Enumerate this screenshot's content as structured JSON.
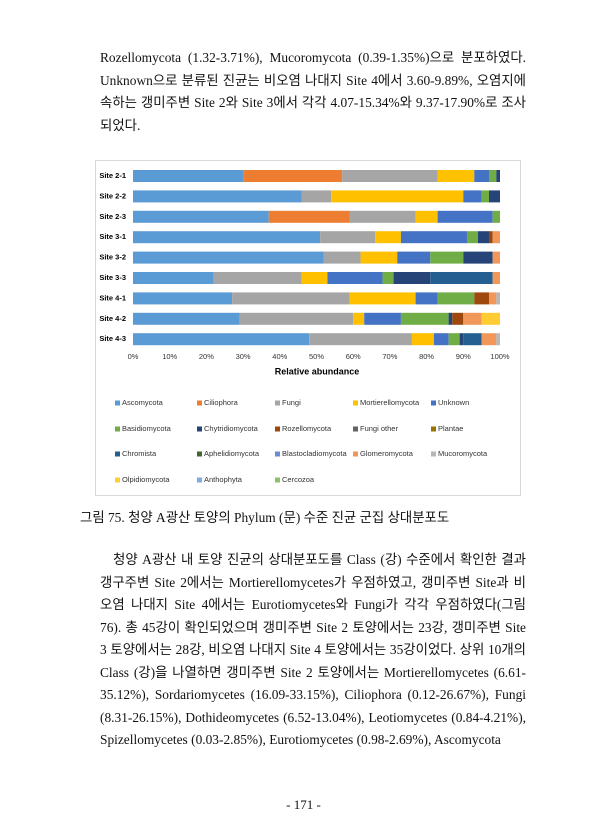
{
  "paragraphs": [
    "Rozellomycota (1.32-3.71%), Mucoromycota (0.39-1.35%)으로 분포하였다. Unknown으로 분류된 진균는 비오염 나대지 Site 4에서 3.60-9.89%, 오염지에 속하는 갱미주변 Site 2와 Site 3에서 각각 4.07-15.34%와 9.37-17.90%로 조사되었다.",
    "청양 A광산 내 토양 진균의 상대분포도를 Class (강) 수준에서 확인한 결과 갱구주변 Site 2에서는 Mortierellomycetes가 우점하였고, 갱미주변 Site과 비오염 나대지 Site 4에서는 Eurotiomycetes와 Fungi가 각각 우점하였다(그림 76). 총 45강이 확인되었으며 갱미주변 Site 2 토양에서는 23강, 갱미주변 Site 3 토양에서는 28강, 비오염 나대지 Site 4 토양에서는 35강이었다. 상위 10개의 Class (강)을 나열하면 갱미주변 Site 2 토양에서는 Mortierellomycetes (6.61-35.12%), Sordariomycetes (16.09-33.15%), Ciliophora (0.12-26.67%), Fungi (8.31-26.15%), Dothideomycetes (6.52-13.04%), Leotiomycetes (0.84-4.21%), Spizellomycetes (0.03-2.85%), Eurotiomycetes (0.98-2.69%), Ascomycota"
  ],
  "caption": "그림 75. 청양 A광산 토양의 Phylum (문) 수준 진균 군집 상대분포도",
  "page_number": "- 171 -",
  "chart_data": {
    "type": "stacked-barh",
    "xlabel": "Relative abundance",
    "categories": [
      "Site 2-1",
      "Site 2-2",
      "Site 2-3",
      "Site 3-1",
      "Site 3-2",
      "Site 3-3",
      "Site 4-1",
      "Site 4-2",
      "Site 4-3"
    ],
    "xlim": [
      0,
      100
    ],
    "xticks": [
      {
        "value": 0,
        "label": "0%"
      },
      {
        "value": 10,
        "label": "10%"
      },
      {
        "value": 20,
        "label": "20%"
      },
      {
        "value": 30,
        "label": "30%"
      },
      {
        "value": 40,
        "label": "40%"
      },
      {
        "value": 50,
        "label": "50%"
      },
      {
        "value": 60,
        "label": "60%"
      },
      {
        "value": 70,
        "label": "70%"
      },
      {
        "value": 80,
        "label": "80%"
      },
      {
        "value": 90,
        "label": "90%"
      },
      {
        "value": 100,
        "label": "100%"
      }
    ],
    "grid": false,
    "series": [
      {
        "name": "Ascomycota",
        "color": "#5b9bd5",
        "values": [
          30,
          46,
          37,
          51,
          52,
          22,
          27,
          29,
          48
        ]
      },
      {
        "name": "Ciliophora",
        "color": "#ed7d31",
        "values": [
          27,
          0,
          22,
          0,
          0,
          0,
          0,
          0,
          0
        ]
      },
      {
        "name": "Fungi",
        "color": "#a5a5a5",
        "values": [
          26,
          8,
          18,
          15,
          10,
          24,
          32,
          31,
          28
        ]
      },
      {
        "name": "Mortierellomycota",
        "color": "#ffc000",
        "values": [
          10,
          36,
          6,
          7,
          10,
          7,
          18,
          3,
          6
        ]
      },
      {
        "name": "Unknown",
        "color": "#4472c4",
        "values": [
          4,
          5,
          15,
          18,
          9,
          15,
          6,
          10,
          4
        ]
      },
      {
        "name": "Basidiomycota",
        "color": "#70ad47",
        "values": [
          2,
          2,
          2,
          3,
          9,
          3,
          10,
          13,
          3
        ]
      },
      {
        "name": "Chytridiomycota",
        "color": "#264478",
        "values": [
          1,
          3,
          0,
          3,
          8,
          10,
          0,
          1,
          1
        ]
      },
      {
        "name": "Rozellomycota",
        "color": "#9e480e",
        "values": [
          0,
          0,
          0,
          1,
          0,
          0,
          4,
          3,
          0
        ]
      },
      {
        "name": "Fungi other",
        "color": "#636363",
        "values": [
          0,
          0,
          0,
          0,
          0,
          0,
          0,
          0,
          0
        ]
      },
      {
        "name": "Plantae",
        "color": "#997300",
        "values": [
          0,
          0,
          0,
          0,
          0,
          0,
          0,
          0,
          0
        ]
      },
      {
        "name": "Chromista",
        "color": "#255e91",
        "values": [
          0,
          0,
          0,
          0,
          0,
          17,
          0,
          0,
          5
        ]
      },
      {
        "name": "Aphelidiomycota",
        "color": "#43682b",
        "values": [
          0,
          0,
          0,
          0,
          0,
          0,
          0,
          0,
          0
        ]
      },
      {
        "name": "Blastocladiomycota",
        "color": "#698ed0",
        "values": [
          0,
          0,
          0,
          0,
          0,
          0,
          0,
          0,
          0
        ]
      },
      {
        "name": "Glomeromycota",
        "color": "#f1975a",
        "values": [
          0,
          0,
          0,
          2,
          2,
          2,
          2,
          5,
          4
        ]
      },
      {
        "name": "Mucoromycota",
        "color": "#b7b7b7",
        "values": [
          0,
          0,
          0,
          0,
          0,
          0,
          1,
          0,
          1
        ]
      },
      {
        "name": "Olpidiomycota",
        "color": "#ffcd33",
        "values": [
          0,
          0,
          0,
          0,
          0,
          0,
          0,
          5,
          0
        ]
      },
      {
        "name": "Anthophyta",
        "color": "#7cafdd",
        "values": [
          0,
          0,
          0,
          0,
          0,
          0,
          0,
          0,
          0
        ]
      },
      {
        "name": "Cercozoa",
        "color": "#8cc168",
        "values": [
          0,
          0,
          0,
          0,
          0,
          0,
          0,
          0,
          0
        ]
      }
    ]
  }
}
